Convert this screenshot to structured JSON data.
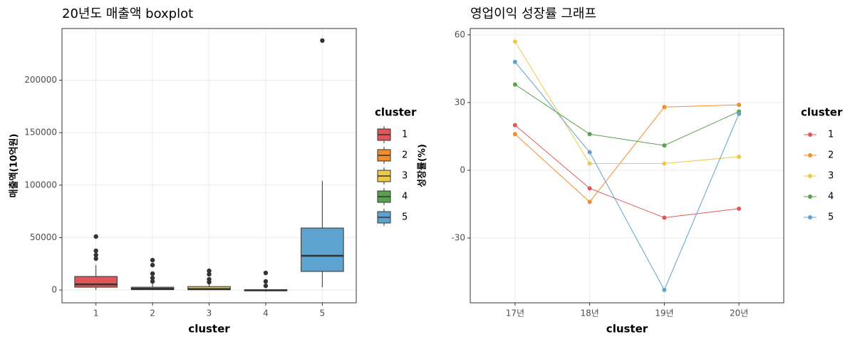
{
  "chart_data": [
    {
      "type": "box",
      "title": "20년도 매출액 boxplot",
      "x_label": "cluster",
      "y_label": "매출액(10억원)",
      "categories": [
        "1",
        "2",
        "3",
        "4",
        "5"
      ],
      "colors": [
        "#E15759",
        "#F28E2B",
        "#EDC948",
        "#59A14F",
        "#5DA3D0"
      ],
      "boxes": [
        {
          "min": 0,
          "q1": 2700,
          "median": 5400,
          "q3": 12900,
          "max": 23800,
          "outliers": [
            29900,
            33300,
            37400,
            51000
          ]
        },
        {
          "min": 0,
          "q1": 300,
          "median": 1200,
          "q3": 2700,
          "max": 6100,
          "outliers": [
            8200,
            11500,
            15600,
            23800,
            28500
          ]
        },
        {
          "min": 0,
          "q1": 200,
          "median": 1000,
          "q3": 3300,
          "max": 8800,
          "outliers": [
            7500,
            10200,
            15000,
            18300
          ]
        },
        {
          "min": -1500,
          "q1": -800,
          "median": -200,
          "q3": 300,
          "max": 1000,
          "outliers": [
            4000,
            8200,
            16300
          ]
        },
        {
          "min": 2700,
          "q1": 17700,
          "median": 32600,
          "q3": 59100,
          "max": 104000,
          "outliers": [
            237800
          ]
        }
      ],
      "ylim": [
        -12200,
        249300
      ],
      "yticks": [
        0,
        50000,
        100000,
        150000,
        200000
      ],
      "grid": true,
      "legend_title": "cluster",
      "legend_position": "right"
    },
    {
      "type": "line",
      "title": "영업이익 성장률  그래프",
      "x_label": "cluster",
      "y_label": "성장률(%)",
      "categories": [
        "17년",
        "18년",
        "19년",
        "20년"
      ],
      "series": [
        {
          "name": "1",
          "color": "#E15759",
          "values": [
            20,
            -8,
            -21,
            -17
          ]
        },
        {
          "name": "2",
          "color": "#F28E2B",
          "values": [
            16,
            -14,
            28,
            29
          ]
        },
        {
          "name": "3",
          "color": "#EDC948",
          "values": [
            57,
            3,
            3,
            6
          ]
        },
        {
          "name": "4",
          "color": "#59A14F",
          "values": [
            38,
            16,
            11,
            26
          ]
        },
        {
          "name": "5",
          "color": "#5DA3D0",
          "values": [
            48,
            8,
            -53,
            25
          ]
        }
      ],
      "ylim": [
        -58.7,
        62.8
      ],
      "yticks": [
        -30,
        0,
        30,
        60
      ],
      "grid": true,
      "legend_title": "cluster",
      "legend_position": "right"
    }
  ]
}
